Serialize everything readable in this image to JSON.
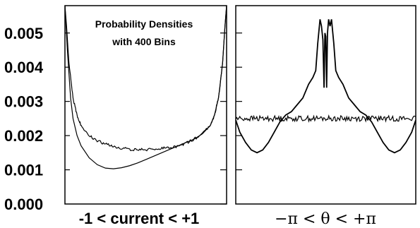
{
  "chart_data": [
    {
      "type": "line",
      "title": "",
      "annotation": [
        "Probability Densities",
        "with 400 Bins"
      ],
      "xlabel": "-1 < current < +1",
      "ylabel": "",
      "xlim": [
        -1,
        1
      ],
      "ylim": [
        0,
        0.0058
      ],
      "yticks": [
        0.0,
        0.001,
        0.002,
        0.003,
        0.004,
        0.005
      ],
      "ytick_labels": [
        "0.000",
        "0.001",
        "0.002",
        "0.003",
        "0.004",
        "0.005"
      ],
      "grid": false,
      "series": [
        {
          "x": [
            -1.0,
            -0.98,
            -0.95,
            -0.9,
            -0.85,
            -0.8,
            -0.7,
            -0.6,
            -0.5,
            -0.4,
            -0.3,
            -0.2,
            -0.1,
            0.0,
            0.1,
            0.2,
            0.3,
            0.4,
            0.5,
            0.6,
            0.7,
            0.8,
            0.85,
            0.9,
            0.95,
            0.98,
            1.0
          ],
          "values": [
            0.0058,
            0.0052,
            0.0041,
            0.0031,
            0.0026,
            0.0023,
            0.002,
            0.00185,
            0.00175,
            0.00168,
            0.00163,
            0.0016,
            0.00159,
            0.00159,
            0.0016,
            0.00162,
            0.00165,
            0.0017,
            0.00178,
            0.0019,
            0.00205,
            0.0023,
            0.0026,
            0.0031,
            0.0041,
            0.0052,
            0.0058
          ]
        },
        {
          "x": [
            -1.0,
            -0.97,
            -0.93,
            -0.9,
            -0.85,
            -0.8,
            -0.7,
            -0.6,
            -0.5,
            -0.4,
            -0.3,
            -0.2,
            -0.1,
            0.0,
            0.1,
            0.2,
            0.3,
            0.4,
            0.5,
            0.6,
            0.7,
            0.8,
            0.85,
            0.9,
            0.95,
            0.98,
            1.0
          ],
          "values": [
            0.0058,
            0.0045,
            0.0031,
            0.0025,
            0.002,
            0.0017,
            0.00135,
            0.00115,
            0.00105,
            0.00103,
            0.00106,
            0.00112,
            0.0012,
            0.0013,
            0.0014,
            0.0015,
            0.0016,
            0.0017,
            0.0018,
            0.0019,
            0.00205,
            0.0023,
            0.0026,
            0.0031,
            0.0041,
            0.0052,
            0.0058
          ]
        }
      ]
    },
    {
      "type": "line",
      "title": "",
      "xlabel": "−π  <  θ  <  +π",
      "ylabel": "",
      "xlim": [
        -3.14159,
        3.14159
      ],
      "ylim": [
        0,
        0.0058
      ],
      "yticks": [
        0.001,
        0.002,
        0.003,
        0.004,
        0.005
      ],
      "grid": false,
      "series": [
        {
          "x": [
            -3.14,
            -3.0,
            -2.8,
            -2.6,
            -2.4,
            -2.2,
            -2.0,
            -1.8,
            -1.6,
            -1.4,
            -1.2,
            -1.0,
            -0.8,
            -0.6,
            -0.45,
            -0.35,
            -0.28,
            -0.2,
            -0.15,
            -0.1,
            -0.06,
            -0.03,
            0.0,
            0.03,
            0.06,
            0.1,
            0.15,
            0.2,
            0.28,
            0.35,
            0.45,
            0.6,
            0.8,
            1.0,
            1.2,
            1.4,
            1.6,
            1.8,
            2.0,
            2.2,
            2.4,
            2.6,
            2.8,
            3.0,
            3.14
          ],
          "values": [
            0.00245,
            0.0021,
            0.0018,
            0.00158,
            0.0015,
            0.00158,
            0.0018,
            0.0021,
            0.0024,
            0.0026,
            0.0027,
            0.0029,
            0.0031,
            0.0035,
            0.0037,
            0.0039,
            0.0047,
            0.0054,
            0.0052,
            0.0048,
            0.0034,
            0.005,
            0.0049,
            0.0034,
            0.005,
            0.0054,
            0.0052,
            0.0054,
            0.0047,
            0.0039,
            0.0037,
            0.0035,
            0.0031,
            0.0029,
            0.0027,
            0.0026,
            0.0024,
            0.0021,
            0.0018,
            0.00158,
            0.0015,
            0.00158,
            0.0018,
            0.0021,
            0.00245
          ]
        },
        {
          "x": [
            -3.14,
            3.14
          ],
          "values": [
            0.0025,
            0.0025
          ],
          "noise": 8e-05
        }
      ]
    }
  ]
}
